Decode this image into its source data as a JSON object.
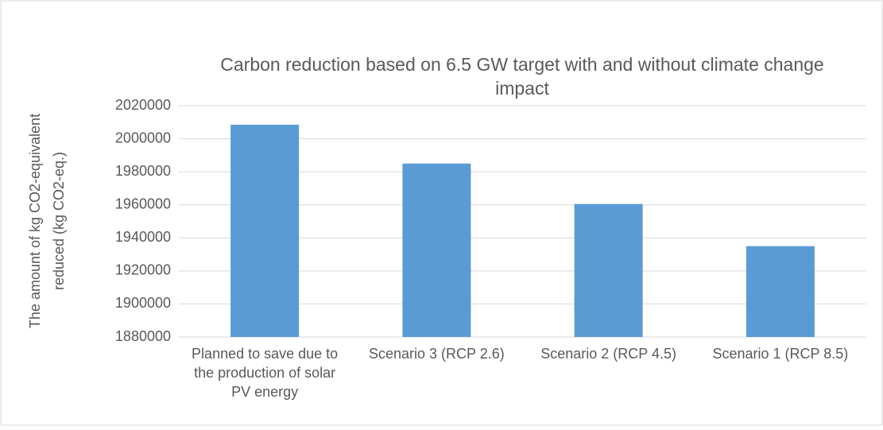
{
  "chart_data": {
    "type": "bar",
    "title": "Carbon reduction based on 6.5 GW target with and without climate change impact",
    "y_label": "The amount of kg CO2-equivalent reduced (kg CO2-eq.)",
    "categories": [
      "Planned to save due to the production of solar PV energy",
      "Scenario 3 (RCP 2.6)",
      "Scenario 2 (RCP 4.5)",
      "Scenario 1 (RCP 8.5)"
    ],
    "values": [
      2008500,
      1985000,
      1960500,
      1935000
    ],
    "color": "#5b9bd5",
    "ylim": [
      1880000,
      2020000
    ],
    "yticks": [
      1880000,
      1900000,
      1920000,
      1940000,
      1960000,
      1980000,
      2000000,
      2020000
    ],
    "grid": true
  }
}
